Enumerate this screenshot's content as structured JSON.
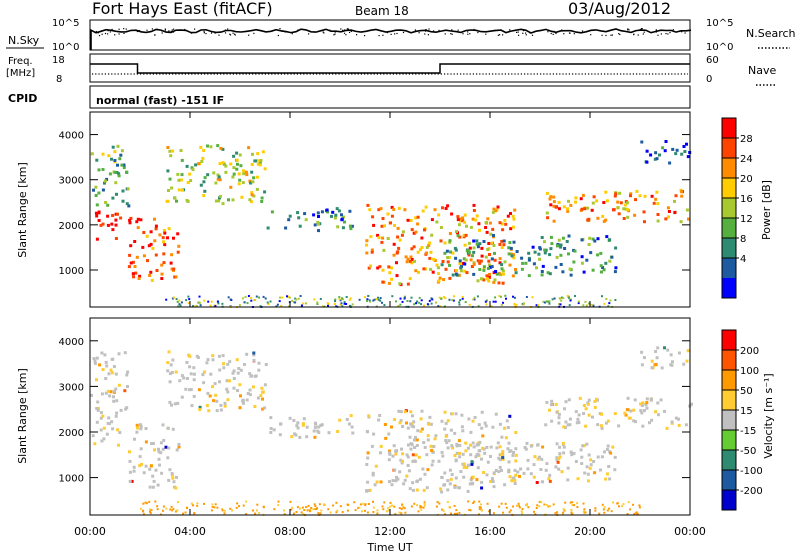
{
  "header": {
    "station": "Fort Hays East (fitACF)",
    "beam": "Beam 18",
    "date": "03/Aug/2012"
  },
  "panels": {
    "nsky": {
      "label": "N.Sky",
      "tick_top": "10^5",
      "tick_bottom": "10^0"
    },
    "nsearch": {
      "label": "N.Search",
      "tick_top": "10^5",
      "tick_bottom": "10^0"
    },
    "freq": {
      "label_line1": "Freq.",
      "label_line2": "[MHz]",
      "tick_top": "18",
      "tick_bottom": "8"
    },
    "nave": {
      "label": "Nave",
      "tick_top": "60",
      "tick_bottom": "0"
    },
    "cpid": {
      "label": "CPID",
      "text": "normal (fast) -151 IF"
    }
  },
  "chart_data": [
    {
      "type": "heatmap",
      "name": "power",
      "ylabel": "Slant Range [km]",
      "xlabel": "",
      "xlim": [
        0,
        24
      ],
      "ylim": [
        180,
        4500
      ],
      "yticks": [
        1000,
        2000,
        3000,
        4000
      ],
      "colorbar": {
        "label": "Power [dB]",
        "ticks": [
          "4",
          "8",
          "12",
          "16",
          "20",
          "24",
          "28"
        ],
        "colors": [
          "#0000ff",
          "#1e5aa0",
          "#2e8a70",
          "#55b040",
          "#a8c830",
          "#ffcc00",
          "#ff8c00",
          "#ff4400",
          "#ff0000"
        ]
      },
      "regions": [
        {
          "t": [
            0.0,
            1.2
          ],
          "r": [
            1700,
            2400
          ],
          "level": 8
        },
        {
          "t": [
            0.0,
            1.5
          ],
          "r": [
            2400,
            3800
          ],
          "level": 3
        },
        {
          "t": [
            1.5,
            3.5
          ],
          "r": [
            800,
            2200
          ],
          "level": 7
        },
        {
          "t": [
            3.0,
            7.0
          ],
          "r": [
            2500,
            3800
          ],
          "level": 4
        },
        {
          "t": [
            7.0,
            10.5
          ],
          "r": [
            1900,
            2400
          ],
          "level": 2
        },
        {
          "t": [
            11.0,
            17.0
          ],
          "r": [
            700,
            2500
          ],
          "level": 6
        },
        {
          "t": [
            14.0,
            21.0
          ],
          "r": [
            900,
            1800
          ],
          "level": 2
        },
        {
          "t": [
            18.0,
            24.0
          ],
          "r": [
            2100,
            2800
          ],
          "level": 6
        },
        {
          "t": [
            22.0,
            24.0
          ],
          "r": [
            3400,
            3900
          ],
          "level": 1
        }
      ]
    },
    {
      "type": "heatmap",
      "name": "velocity",
      "ylabel": "Slant Range [km]",
      "xlabel": "Time UT",
      "xlim": [
        0,
        24
      ],
      "ylim": [
        180,
        4500
      ],
      "yticks": [
        1000,
        2000,
        3000,
        4000
      ],
      "xticks": [
        "00:00",
        "04:00",
        "08:00",
        "12:00",
        "16:00",
        "20:00",
        "00:00"
      ],
      "colorbar": {
        "label": "Velocity [m s⁻¹]",
        "ticks": [
          "200",
          "100",
          "50",
          "15",
          "-15",
          "-50",
          "-100",
          "-200"
        ],
        "colors": [
          "#0000cc",
          "#1e5aa0",
          "#2e8a70",
          "#66cc33",
          "#c0c0c0",
          "#ffcc33",
          "#ff9900",
          "#ff5500",
          "#ff0000"
        ]
      }
    }
  ],
  "freq_series": {
    "t": [
      0,
      1.9,
      1.9,
      14.0,
      14.0,
      24
    ],
    "mhz": [
      15,
      15,
      10.5,
      10.5,
      15,
      15
    ]
  }
}
